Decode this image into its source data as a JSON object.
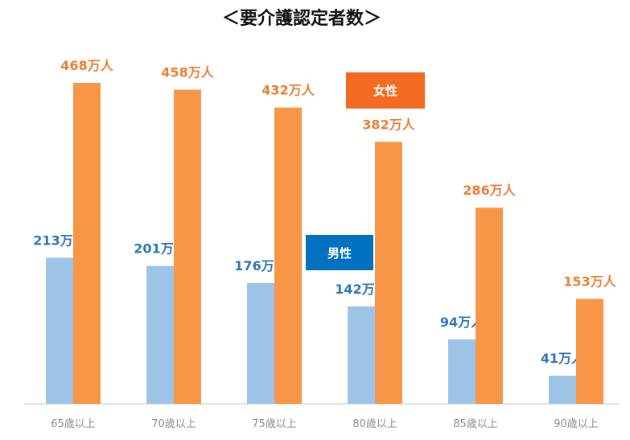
{
  "chart_data": {
    "type": "bar",
    "title": "＜要介護認定者数＞",
    "categories": [
      "65歳以上",
      "70歳以上",
      "75歳以上",
      "80歳以上",
      "85歳以上",
      "90歳以上"
    ],
    "series": [
      {
        "name": "男性",
        "color": "#9dc3e6",
        "label_color": "#2e75b6",
        "values": [
          213,
          201,
          176,
          142,
          94,
          41
        ],
        "labels": [
          "213万人",
          "201万人",
          "176万人",
          "142万人",
          "94万人",
          "41万人"
        ]
      },
      {
        "name": "女性",
        "color": "#f79646",
        "label_color": "#ed7d31",
        "values": [
          468,
          458,
          432,
          382,
          286,
          153
        ],
        "labels": [
          "468万人",
          "458万人",
          "432万人",
          "382万人",
          "286万人",
          "153万人"
        ]
      }
    ],
    "ylim": [
      0,
      468
    ],
    "legend": {
      "male_label": "男性",
      "male_color": "#0070c0",
      "female_label": "女性",
      "female_color": "#f26b21"
    },
    "axis_color": "#d9d9d9",
    "grid": false
  }
}
